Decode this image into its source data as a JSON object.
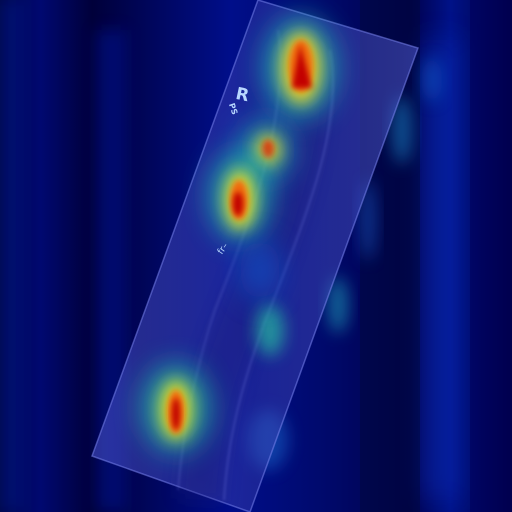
{
  "image": {
    "kind": "radiograph-heatmap-overlay",
    "colormap": "jet",
    "background_color": "#00003a",
    "overlay_colors": [
      "#00004a",
      "#0020c8",
      "#0a8fd0",
      "#20d0a0",
      "#f0e020",
      "#f07010",
      "#c00000"
    ],
    "film_tint": "#6a78e8",
    "marker_color": "#b8d8ff"
  },
  "film_annotations": {
    "side_marker": "R",
    "side_marker_sub": "PS",
    "scribble": "fr–"
  }
}
